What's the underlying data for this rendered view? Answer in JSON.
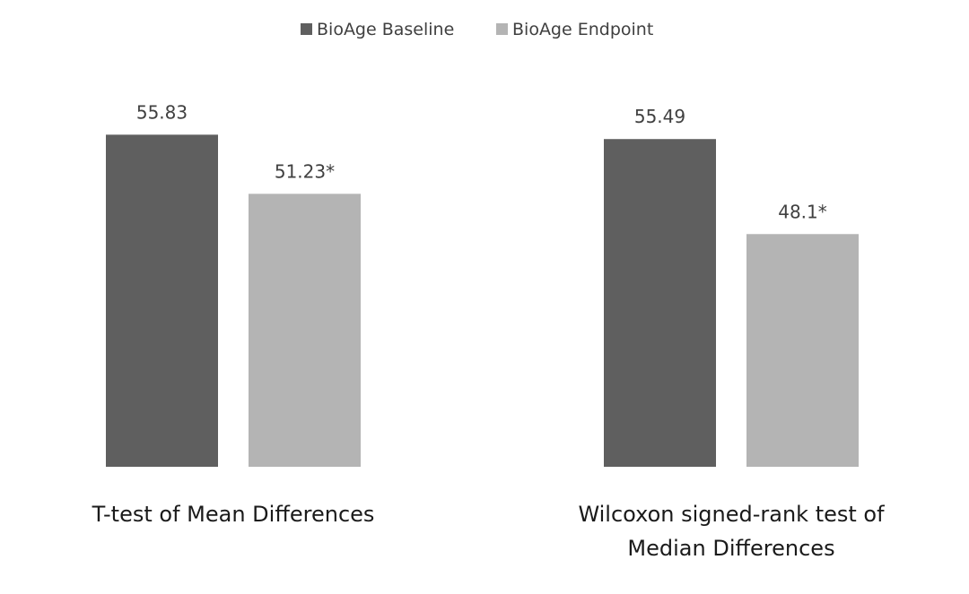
{
  "chart_data": {
    "type": "bar",
    "title": "",
    "xlabel": "",
    "ylabel": "",
    "ylim": [
      30,
      58
    ],
    "grid": false,
    "legend_position": "top-center",
    "categories": [
      [
        "T-test of Mean Differences"
      ],
      [
        "Wilcoxon signed-rank test of",
        "Median Differences"
      ]
    ],
    "series": [
      {
        "name": "BioAge Baseline",
        "color": "#5f5f5f",
        "values": [
          55.83,
          55.49
        ],
        "labels": [
          "55.83",
          "55.49"
        ]
      },
      {
        "name": "BioAge Endpoint",
        "color": "#b4b4b4",
        "values": [
          51.23,
          48.1
        ],
        "labels": [
          "51.23*",
          "48.1*"
        ]
      }
    ]
  }
}
